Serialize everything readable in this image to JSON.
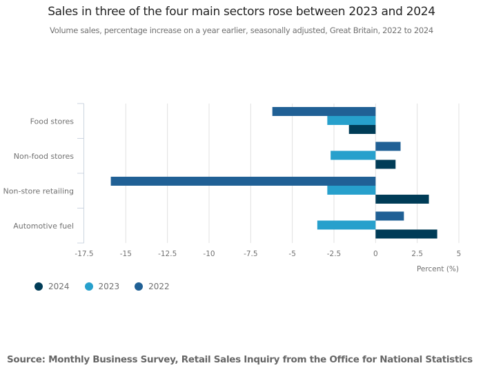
{
  "chart_data": {
    "type": "bar",
    "orientation": "horizontal",
    "title": "Sales in three of the four main sectors rose between 2023 and 2024",
    "subtitle": "Volume sales, percentage increase on a year earlier, seasonally adjusted, Great Britain, 2022 to 2024",
    "categories": [
      "Food stores",
      "Non-food stores",
      "Non-store retailing",
      "Automotive fuel"
    ],
    "series": [
      {
        "name": "2022",
        "color": "#206095",
        "values": [
          -6.2,
          1.5,
          -15.9,
          1.7
        ]
      },
      {
        "name": "2023",
        "color": "#27a0cc",
        "values": [
          -2.9,
          -2.7,
          -2.9,
          -3.5
        ]
      },
      {
        "name": "2024",
        "color": "#003c57",
        "values": [
          -1.6,
          1.2,
          3.2,
          3.7
        ]
      }
    ],
    "legend_order": [
      "2024",
      "2023",
      "2022"
    ],
    "xlabel": "Percent (%)",
    "ylabel": "",
    "xlim": [
      -17.5,
      5
    ],
    "xticks": [
      -17.5,
      -15,
      -12.5,
      -10,
      -7.5,
      -5,
      -2.5,
      0,
      2.5,
      5
    ],
    "xtick_labels": [
      "-17.5",
      "-15",
      "-12.5",
      "-10",
      "-7.5",
      "-5",
      "-2.5",
      "0",
      "2.5",
      "5"
    ],
    "grid": true,
    "legend_position": "bottom-left"
  },
  "source": "Source: Monthly Business Survey, Retail Sales Inquiry from the Office for National Statistics"
}
